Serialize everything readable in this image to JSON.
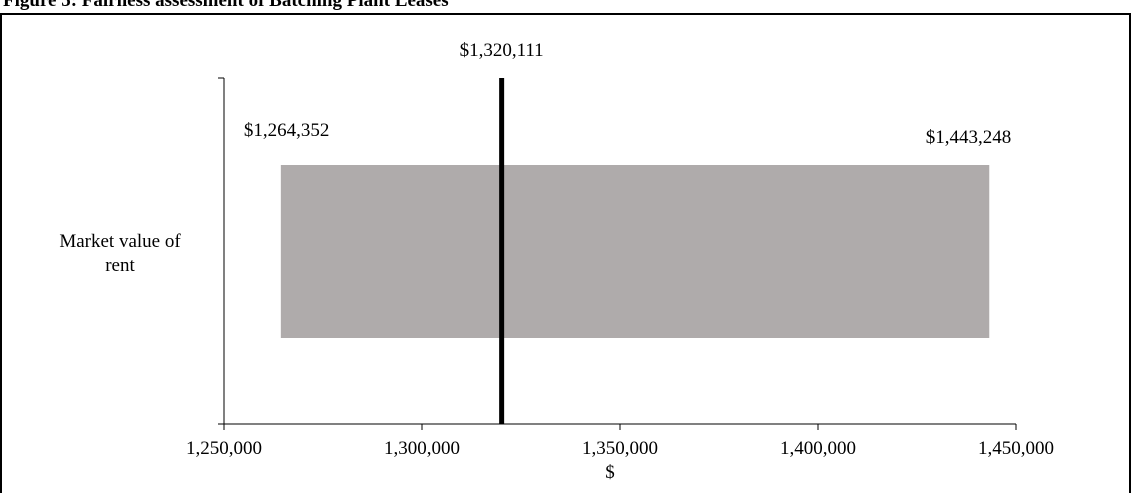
{
  "figure": {
    "title": "Figure 5: Fairness assessment of Batching Plant Leases"
  },
  "chart_data": {
    "type": "bar",
    "orientation": "horizontal",
    "categories": [
      "Market value of rent"
    ],
    "range_bar": {
      "low": 1264352,
      "high": 1443248,
      "low_label": "$1,264,352",
      "high_label": "$1,443,248"
    },
    "reference_line": {
      "value": 1320111,
      "label": "$1,320,111"
    },
    "xlabel": "$",
    "ylabel": "",
    "xlim": [
      1250000,
      1450000
    ],
    "xticks": [
      1250000,
      1300000,
      1350000,
      1400000,
      1450000
    ],
    "xtick_labels": [
      "1,250,000",
      "1,300,000",
      "1,350,000",
      "1,400,000",
      "1,450,000"
    ],
    "grid": false,
    "legend": "none",
    "colors": {
      "bar": "#afabab",
      "reference_line": "#000000",
      "axis": "#000000"
    }
  }
}
